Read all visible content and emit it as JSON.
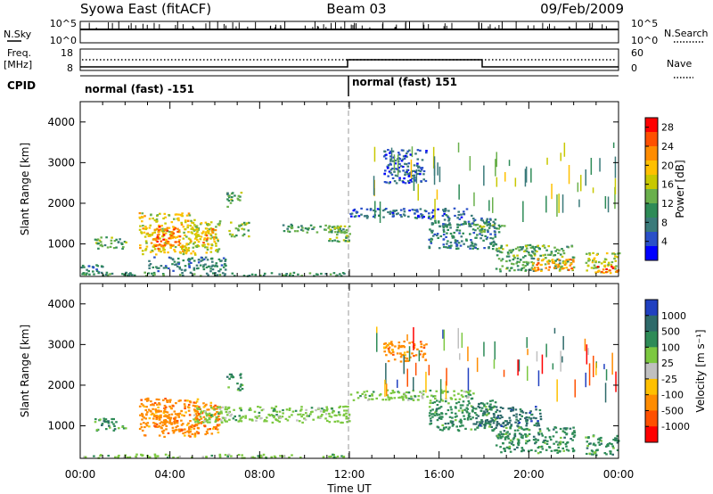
{
  "header": {
    "site": "Syowa East (fitACF)",
    "beam": "Beam 03",
    "date": "09/Feb/2009"
  },
  "nsky": {
    "label": "N.Sky",
    "right_label": "N.Search",
    "left_ticks": [
      "10^5",
      "10^0"
    ],
    "right_ticks": [
      "10^5",
      "10^0"
    ]
  },
  "freq": {
    "label_line1": "Freq.",
    "label_line2": "[MHz]",
    "right_label": "Nave",
    "left_ticks": [
      "18",
      "8"
    ],
    "right_ticks": [
      "60",
      "0"
    ]
  },
  "cpid": {
    "label": "CPID",
    "segments": [
      {
        "label": "normal (fast) -151",
        "start_hour": 0,
        "end_hour": 12
      },
      {
        "label": "normal (fast) 151",
        "start_hour": 12,
        "end_hour": 24
      }
    ]
  },
  "time_axis": {
    "label": "Time UT",
    "ticks": [
      "00:00",
      "04:00",
      "08:00",
      "12:00",
      "16:00",
      "20:00",
      "00:00"
    ],
    "range_hours": [
      0,
      24
    ]
  },
  "chart_data": [
    {
      "type": "heatmap",
      "title": "",
      "xlabel": "Time UT",
      "ylabel": "Slant Range [km]",
      "xlim_hours": [
        0,
        24
      ],
      "ylim": [
        200,
        4500
      ],
      "y_ticks": [
        "1000",
        "2000",
        "3000",
        "4000"
      ],
      "y_tick_values": [
        1000,
        2000,
        3000,
        4000
      ],
      "colorbar": {
        "label": "Power [dB]",
        "ticks": [
          "4",
          "8",
          "12",
          "16",
          "20",
          "24",
          "28"
        ],
        "tick_values": [
          4,
          8,
          12,
          16,
          20,
          24,
          28
        ],
        "range": [
          0,
          30
        ],
        "colors": [
          "#0000ff",
          "#2a50c8",
          "#3a7a7a",
          "#2e8b57",
          "#6ab04c",
          "#c8c800",
          "#ffc000",
          "#ff8c00",
          "#ff5000",
          "#ff0000"
        ]
      },
      "regions": [
        {
          "t0": 0.0,
          "t1": 11.9,
          "r0": 230,
          "r1": 320,
          "value": 10
        },
        {
          "t0": 0.6,
          "t1": 2.0,
          "r0": 900,
          "r1": 1200,
          "value": 12
        },
        {
          "t0": 0.0,
          "t1": 1.2,
          "r0": 250,
          "r1": 500,
          "value": 8
        },
        {
          "t0": 2.6,
          "t1": 5.2,
          "r0": 750,
          "r1": 1800,
          "value": 18
        },
        {
          "t0": 3.2,
          "t1": 4.4,
          "r0": 900,
          "r1": 1450,
          "value": 24
        },
        {
          "t0": 5.0,
          "t1": 6.2,
          "r0": 800,
          "r1": 1600,
          "value": 16
        },
        {
          "t0": 5.4,
          "t1": 6.0,
          "r0": 1000,
          "r1": 1400,
          "value": 22
        },
        {
          "t0": 6.5,
          "t1": 7.2,
          "r0": 1900,
          "r1": 2300,
          "value": 12
        },
        {
          "t0": 6.6,
          "t1": 7.5,
          "r0": 1200,
          "r1": 1550,
          "value": 14
        },
        {
          "t0": 3.0,
          "t1": 6.5,
          "r0": 350,
          "r1": 700,
          "value": 8
        },
        {
          "t0": 9.0,
          "t1": 12.0,
          "r0": 1300,
          "r1": 1500,
          "value": 10
        },
        {
          "t0": 11.0,
          "t1": 12.0,
          "r0": 1050,
          "r1": 1500,
          "value": 14
        },
        {
          "t0": 12.0,
          "t1": 17.5,
          "r0": 1650,
          "r1": 1900,
          "value": 6
        },
        {
          "t0": 13.5,
          "t1": 15.4,
          "r0": 2500,
          "r1": 3350,
          "value": 5
        },
        {
          "t0": 15.5,
          "t1": 18.5,
          "r0": 900,
          "r1": 1650,
          "value": 8
        },
        {
          "t0": 17.5,
          "t1": 19.0,
          "r0": 1300,
          "r1": 1550,
          "value": 12
        },
        {
          "t0": 18.5,
          "t1": 22.0,
          "r0": 350,
          "r1": 1000,
          "value": 12
        },
        {
          "t0": 20.0,
          "t1": 22.0,
          "r0": 350,
          "r1": 650,
          "value": 22
        },
        {
          "t0": 22.5,
          "t1": 24.0,
          "r0": 300,
          "r1": 800,
          "value": 16
        },
        {
          "t0": 23.0,
          "t1": 24.0,
          "r0": 300,
          "r1": 500,
          "value": 24
        }
      ]
    },
    {
      "type": "heatmap",
      "title": "",
      "xlabel": "Time UT",
      "ylabel": "Slant Range [km]",
      "xlim_hours": [
        0,
        24
      ],
      "ylim": [
        200,
        4500
      ],
      "y_ticks": [
        "1000",
        "2000",
        "3000",
        "4000"
      ],
      "y_tick_values": [
        1000,
        2000,
        3000,
        4000
      ],
      "colorbar": {
        "label": "Velocity [m s⁻¹]",
        "ticks": [
          "1000",
          "500",
          "100",
          "25",
          "-25",
          "-100",
          "-500",
          "-1000"
        ],
        "colors": [
          "#2040c0",
          "#2e6a6a",
          "#2e8b57",
          "#7cc840",
          "#c0c0c0",
          "#ffc000",
          "#ff8c00",
          "#ff5000",
          "#ff0000"
        ]
      },
      "regions": [
        {
          "t0": 0.0,
          "t1": 11.9,
          "r0": 230,
          "r1": 320,
          "value": "25"
        },
        {
          "t0": 0.6,
          "t1": 2.0,
          "r0": 900,
          "r1": 1200,
          "value": "100"
        },
        {
          "t0": 2.6,
          "t1": 5.2,
          "r0": 750,
          "r1": 1700,
          "value": "-500"
        },
        {
          "t0": 3.2,
          "t1": 4.4,
          "r0": 900,
          "r1": 1400,
          "value": "-500"
        },
        {
          "t0": 5.0,
          "t1": 6.2,
          "r0": 800,
          "r1": 1600,
          "value": "-500"
        },
        {
          "t0": 5.0,
          "t1": 12.0,
          "r0": 1100,
          "r1": 1500,
          "value": "25"
        },
        {
          "t0": 6.5,
          "t1": 7.2,
          "r0": 1900,
          "r1": 2300,
          "value": "100"
        },
        {
          "t0": 12.0,
          "t1": 17.5,
          "r0": 1650,
          "r1": 1900,
          "value": "25"
        },
        {
          "t0": 13.5,
          "t1": 15.4,
          "r0": 2600,
          "r1": 3100,
          "value": "-500"
        },
        {
          "t0": 15.5,
          "t1": 18.5,
          "r0": 900,
          "r1": 1650,
          "value": "100"
        },
        {
          "t0": 17.5,
          "t1": 20.5,
          "r0": 1000,
          "r1": 1500,
          "value": "500"
        },
        {
          "t0": 18.5,
          "t1": 22.0,
          "r0": 350,
          "r1": 1000,
          "value": "100"
        },
        {
          "t0": 22.5,
          "t1": 24.0,
          "r0": 300,
          "r1": 800,
          "value": "100"
        }
      ]
    }
  ]
}
